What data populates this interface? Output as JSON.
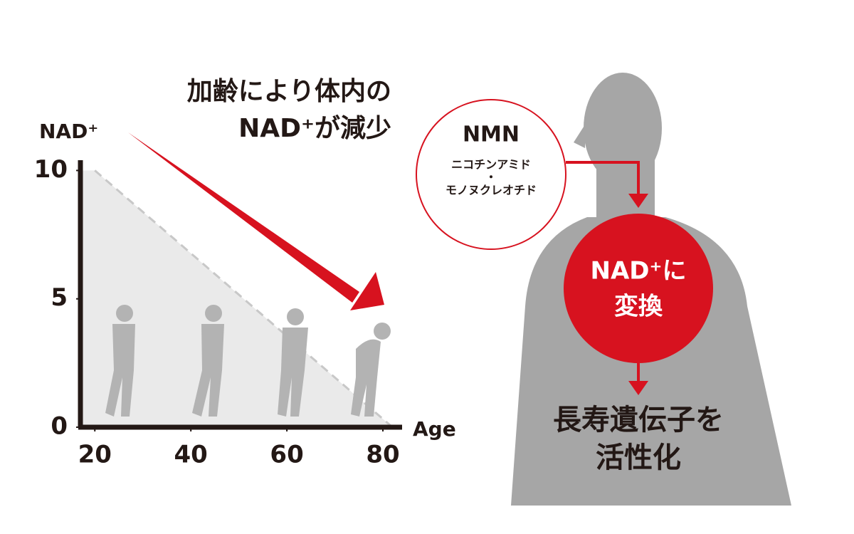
{
  "chart_data": {
    "type": "area",
    "title": [
      "加齢により体内の",
      "NAD⁺が減少"
    ],
    "y_label": "NAD⁺",
    "x_label": "Age",
    "x": [
      20,
      82
    ],
    "values": [
      10,
      0
    ],
    "xlim": [
      17,
      84
    ],
    "ylim": [
      0,
      10.4
    ],
    "xticks": [
      20,
      40,
      60,
      80
    ],
    "yticks": [
      0,
      5,
      10
    ],
    "color": "#dcdcdc"
  },
  "diagram": {
    "nmn": {
      "title": "NMN",
      "lines": [
        "ニコチンアミド",
        "・",
        "モノヌクレオチド"
      ]
    },
    "convert": [
      "NAD⁺に",
      "変換"
    ],
    "result": [
      "長寿遺伝子を",
      "活性化"
    ]
  }
}
